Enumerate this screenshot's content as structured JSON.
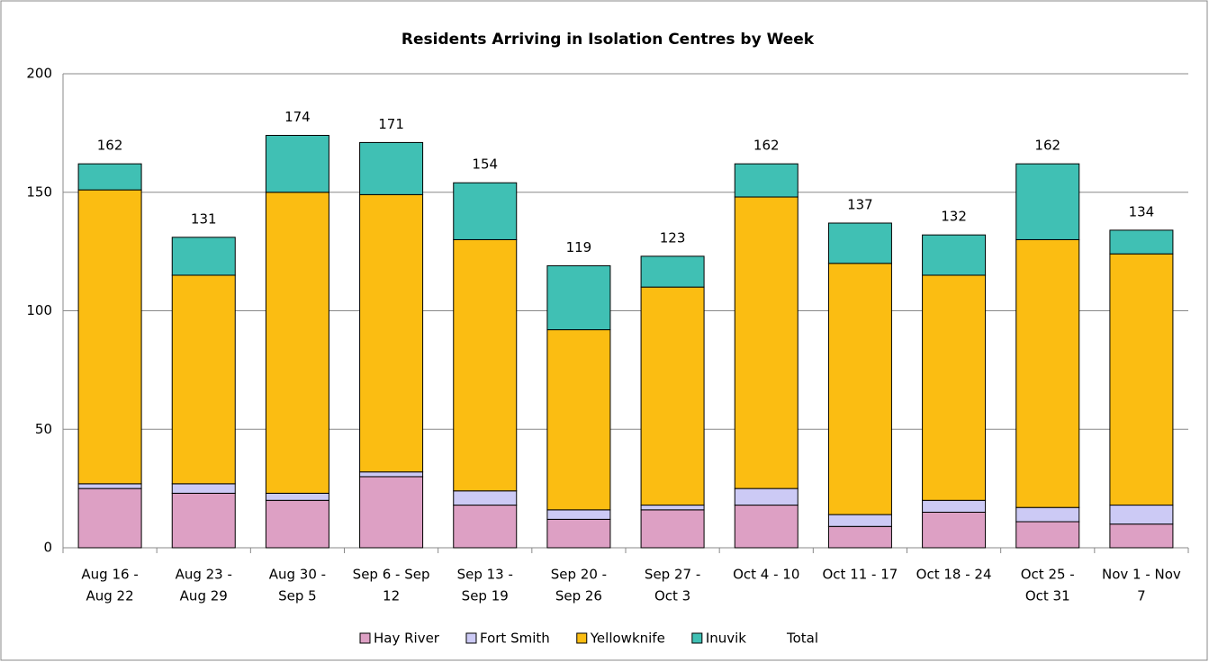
{
  "chart_data": {
    "type": "stacked_bar",
    "title": "Residents Arriving in Isolation Centres by Week",
    "categories": [
      [
        "Aug 16 -",
        "Aug 22"
      ],
      [
        "Aug 23 -",
        "Aug 29"
      ],
      [
        "Aug 30 -",
        "Sep 5"
      ],
      [
        "Sep 6 - Sep",
        "12"
      ],
      [
        "Sep 13 -",
        "Sep 19"
      ],
      [
        "Sep 20 -",
        "Sep 26"
      ],
      [
        "Sep 27 -",
        "Oct 3"
      ],
      [
        "Oct 4 - 10"
      ],
      [
        "Oct 11 - 17"
      ],
      [
        "Oct 18 - 24"
      ],
      [
        "Oct 25 -",
        "Oct 31"
      ],
      [
        "Nov 1 - Nov",
        "7"
      ]
    ],
    "series": [
      {
        "name": "Hay River",
        "color": "#dda0c4",
        "values": [
          25,
          23,
          20,
          30,
          18,
          12,
          16,
          18,
          9,
          15,
          11,
          10
        ]
      },
      {
        "name": "Fort Smith",
        "color": "#cccaf5",
        "values": [
          2,
          4,
          3,
          2,
          6,
          4,
          2,
          7,
          5,
          5,
          6,
          8
        ]
      },
      {
        "name": "Yellowknife",
        "color": "#fbbd12",
        "values": [
          124,
          88,
          127,
          117,
          106,
          76,
          92,
          123,
          106,
          95,
          113,
          106
        ]
      },
      {
        "name": "Inuvik",
        "color": "#40c0b4",
        "values": [
          11,
          16,
          24,
          22,
          24,
          27,
          13,
          14,
          17,
          17,
          32,
          10
        ]
      },
      {
        "name": "Total",
        "color": "none",
        "values": [
          162,
          131,
          174,
          171,
          154,
          119,
          123,
          162,
          137,
          132,
          162,
          134
        ]
      }
    ],
    "ylim": [
      0,
      200
    ],
    "yticks": [
      0,
      50,
      100,
      150,
      200
    ],
    "grid": true,
    "legend": "bottom"
  }
}
